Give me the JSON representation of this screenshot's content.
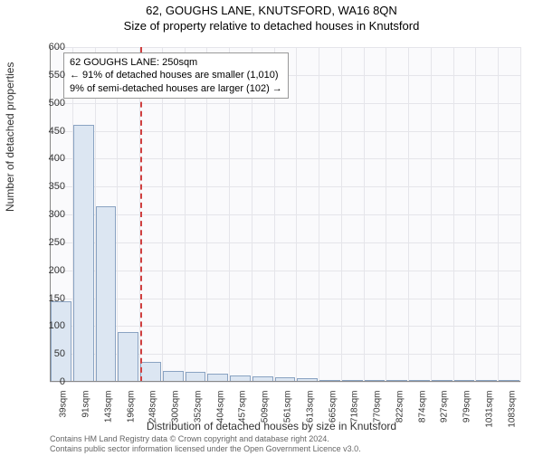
{
  "title": "62, GOUGHS LANE, KNUTSFORD, WA16 8QN",
  "subtitle": "Size of property relative to detached houses in Knutsford",
  "ylabel": "Number of detached properties",
  "xlabel": "Distribution of detached houses by size in Knutsford",
  "ylim": [
    0,
    600
  ],
  "ytick_step": 50,
  "xticks": [
    "39sqm",
    "91sqm",
    "143sqm",
    "196sqm",
    "248sqm",
    "300sqm",
    "352sqm",
    "404sqm",
    "457sqm",
    "509sqm",
    "561sqm",
    "613sqm",
    "665sqm",
    "718sqm",
    "770sqm",
    "822sqm",
    "874sqm",
    "927sqm",
    "979sqm",
    "1031sqm",
    "1083sqm"
  ],
  "bars": [
    145,
    460,
    315,
    90,
    35,
    20,
    18,
    15,
    12,
    10,
    8,
    6,
    4,
    3,
    3,
    2,
    2,
    2,
    1,
    1,
    1
  ],
  "bar_fill": "#dce6f2",
  "bar_border": "#8aa3c2",
  "bg_color": "#fafafc",
  "grid_color": "#e5e5ea",
  "marker_color": "#d04040",
  "marker_bar_index": 4,
  "annotation": {
    "line1": "62 GOUGHS LANE: 250sqm",
    "line2": "← 91% of detached houses are smaller (1,010)",
    "line3": "9% of semi-detached houses are larger (102) →"
  },
  "footer": {
    "line1": "Contains HM Land Registry data © Crown copyright and database right 2024.",
    "line2": "Contains public sector information licensed under the Open Government Licence v3.0."
  },
  "title_fontsize": 13,
  "label_fontsize": 12,
  "tick_fontsize": 11
}
